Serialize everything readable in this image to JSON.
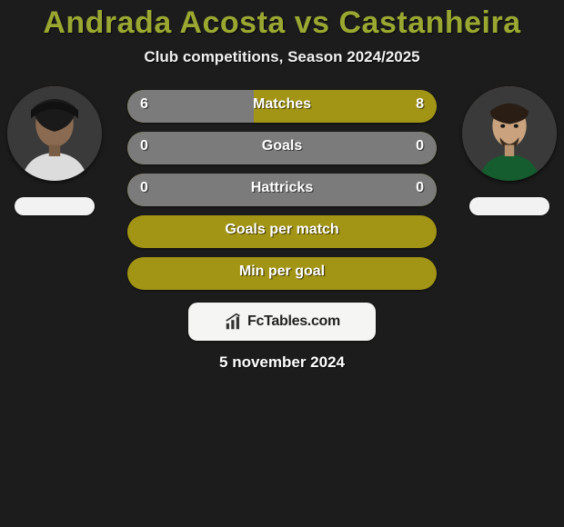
{
  "title": "Andrada Acosta vs Castanheira",
  "subtitle": "Club competitions, Season 2024/2025",
  "date": "5 november 2024",
  "logo_text": "FcTables.com",
  "colors": {
    "accent": "#9aa832",
    "bar_base": "#a29515",
    "bar_fill_left": "#7b7b7b",
    "bar_fill_right": "#7b7b7b",
    "bar_olive_left": "#a29515",
    "bar_olive_right": "#a29515",
    "logo_bg": "#f5f5f3",
    "title_color": "#9aa832"
  },
  "players": {
    "left": {
      "name": "Andrada Acosta"
    },
    "right": {
      "name": "Castanheira"
    }
  },
  "bars": [
    {
      "label": "Matches",
      "left_value": "6",
      "right_value": "8",
      "left_pct": 41,
      "right_pct": 59,
      "left_color": "#7b7b7b",
      "right_color": "#a29515",
      "base_color": "#a29515"
    },
    {
      "label": "Goals",
      "left_value": "0",
      "right_value": "0",
      "left_pct": 50,
      "right_pct": 50,
      "left_color": "#7b7b7b",
      "right_color": "#7b7b7b",
      "base_color": "#a29515"
    },
    {
      "label": "Hattricks",
      "left_value": "0",
      "right_value": "0",
      "left_pct": 50,
      "right_pct": 50,
      "left_color": "#7b7b7b",
      "right_color": "#7b7b7b",
      "base_color": "#a29515"
    },
    {
      "label": "Goals per match",
      "left_value": "",
      "right_value": "",
      "left_pct": 0,
      "right_pct": 0,
      "left_color": "#a29515",
      "right_color": "#a29515",
      "base_color": "#a29515"
    },
    {
      "label": "Min per goal",
      "left_value": "",
      "right_value": "",
      "left_pct": 0,
      "right_pct": 0,
      "left_color": "#a29515",
      "right_color": "#a29515",
      "base_color": "#a29515"
    }
  ]
}
